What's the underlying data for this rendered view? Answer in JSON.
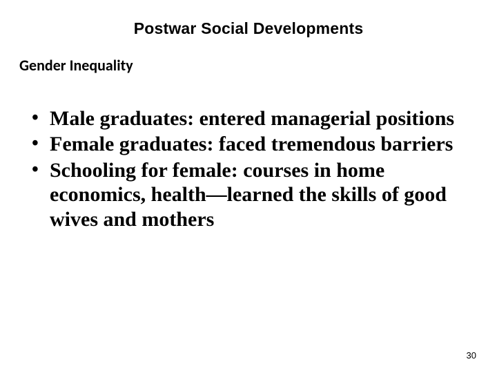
{
  "slide": {
    "title": "Postwar Social Developments",
    "subtitle": "Gender Inequality",
    "bullets": [
      "Male graduates: entered managerial positions",
      "Female graduates: faced tremendous barriers",
      "Schooling for female: courses in home economics, health—learned the skills of good wives and mothers"
    ],
    "pageNumber": "30"
  },
  "style": {
    "backgroundColor": "#ffffff",
    "textColor": "#000000",
    "titleFontFamily": "Arial",
    "titleFontSize": 23,
    "titleFontWeight": "bold",
    "subtitleFontFamily": "Calibri",
    "subtitleFontSize": 22,
    "subtitleFontWeight": "bold",
    "bodyFontFamily": "Times New Roman",
    "bodyFontSize": 30,
    "bodyFontWeight": "bold",
    "pageNumberFontSize": 13
  }
}
